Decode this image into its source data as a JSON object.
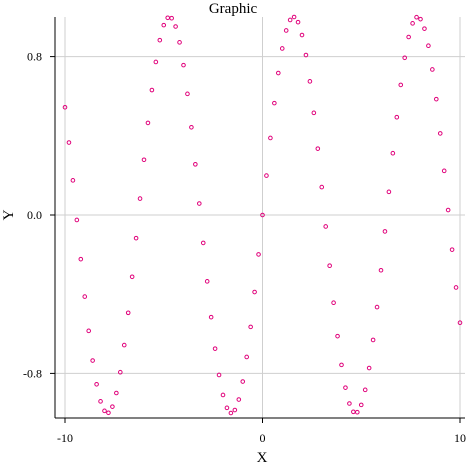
{
  "chart_data": {
    "type": "scatter",
    "title": "Graphic",
    "xlabel": "X",
    "ylabel": "Y",
    "xlim": [
      -10,
      10
    ],
    "ylim": [
      -1,
      1
    ],
    "xticks": [
      -10,
      0,
      10
    ],
    "xtick_labels": [
      "-10",
      "0",
      "10"
    ],
    "yticks": [
      -0.8,
      0.0,
      0.8
    ],
    "ytick_labels": [
      "-0.8",
      "0.0",
      "0.8"
    ],
    "grid": true,
    "marker": "open-circle",
    "marker_color": "#e0007a",
    "series": [
      {
        "x": [
          -10.0,
          -9.8,
          -9.6,
          -9.4,
          -9.2,
          -9.0,
          -8.8,
          -8.6,
          -8.4,
          -8.2,
          -8.0,
          -7.8,
          -7.6,
          -7.4,
          -7.2,
          -7.0,
          -6.8,
          -6.6,
          -6.4,
          -6.2,
          -6.0,
          -5.8,
          -5.6,
          -5.4,
          -5.2,
          -5.0,
          -4.8,
          -4.6,
          -4.4,
          -4.2,
          -4.0,
          -3.8,
          -3.6,
          -3.4,
          -3.2,
          -3.0,
          -2.8,
          -2.6,
          -2.4,
          -2.2,
          -2.0,
          -1.8,
          -1.6,
          -1.4,
          -1.2,
          -1.0,
          -0.8,
          -0.6,
          -0.4,
          -0.2,
          0.0,
          0.2,
          0.4,
          0.6,
          0.8,
          1.0,
          1.2,
          1.4,
          1.6,
          1.8,
          2.0,
          2.2,
          2.4,
          2.6,
          2.8,
          3.0,
          3.2,
          3.4,
          3.6,
          3.8,
          4.0,
          4.2,
          4.4,
          4.6,
          4.8,
          5.0,
          5.2,
          5.4,
          5.6,
          5.8,
          6.0,
          6.2,
          6.4,
          6.6,
          6.8,
          7.0,
          7.2,
          7.4,
          7.6,
          7.8,
          8.0,
          8.2,
          8.4,
          8.6,
          8.8,
          9.0,
          9.2,
          9.4,
          9.6,
          9.8,
          10.0
        ],
        "y": [
          0.544,
          0.366,
          0.175,
          -0.025,
          -0.223,
          -0.412,
          -0.585,
          -0.735,
          -0.855,
          -0.941,
          -0.989,
          -0.999,
          -0.968,
          -0.899,
          -0.794,
          -0.657,
          -0.494,
          -0.312,
          -0.117,
          0.083,
          0.279,
          0.465,
          0.631,
          0.773,
          0.883,
          0.959,
          0.996,
          0.994,
          0.952,
          0.872,
          0.757,
          0.612,
          0.443,
          0.256,
          0.058,
          -0.141,
          -0.335,
          -0.516,
          -0.675,
          -0.808,
          -0.909,
          -0.974,
          -1.0,
          -0.985,
          -0.932,
          -0.841,
          -0.717,
          -0.565,
          -0.389,
          -0.199,
          0.0,
          0.199,
          0.389,
          0.565,
          0.717,
          0.841,
          0.932,
          0.985,
          1.0,
          0.974,
          0.909,
          0.808,
          0.675,
          0.516,
          0.335,
          0.141,
          -0.058,
          -0.256,
          -0.443,
          -0.612,
          -0.757,
          -0.872,
          -0.952,
          -0.994,
          -0.996,
          -0.959,
          -0.883,
          -0.773,
          -0.631,
          -0.465,
          -0.279,
          -0.083,
          0.117,
          0.312,
          0.494,
          0.657,
          0.794,
          0.899,
          0.968,
          0.999,
          0.989,
          0.941,
          0.855,
          0.735,
          0.585,
          0.412,
          0.223,
          0.025,
          -0.175,
          -0.366,
          -0.544
        ]
      }
    ]
  }
}
